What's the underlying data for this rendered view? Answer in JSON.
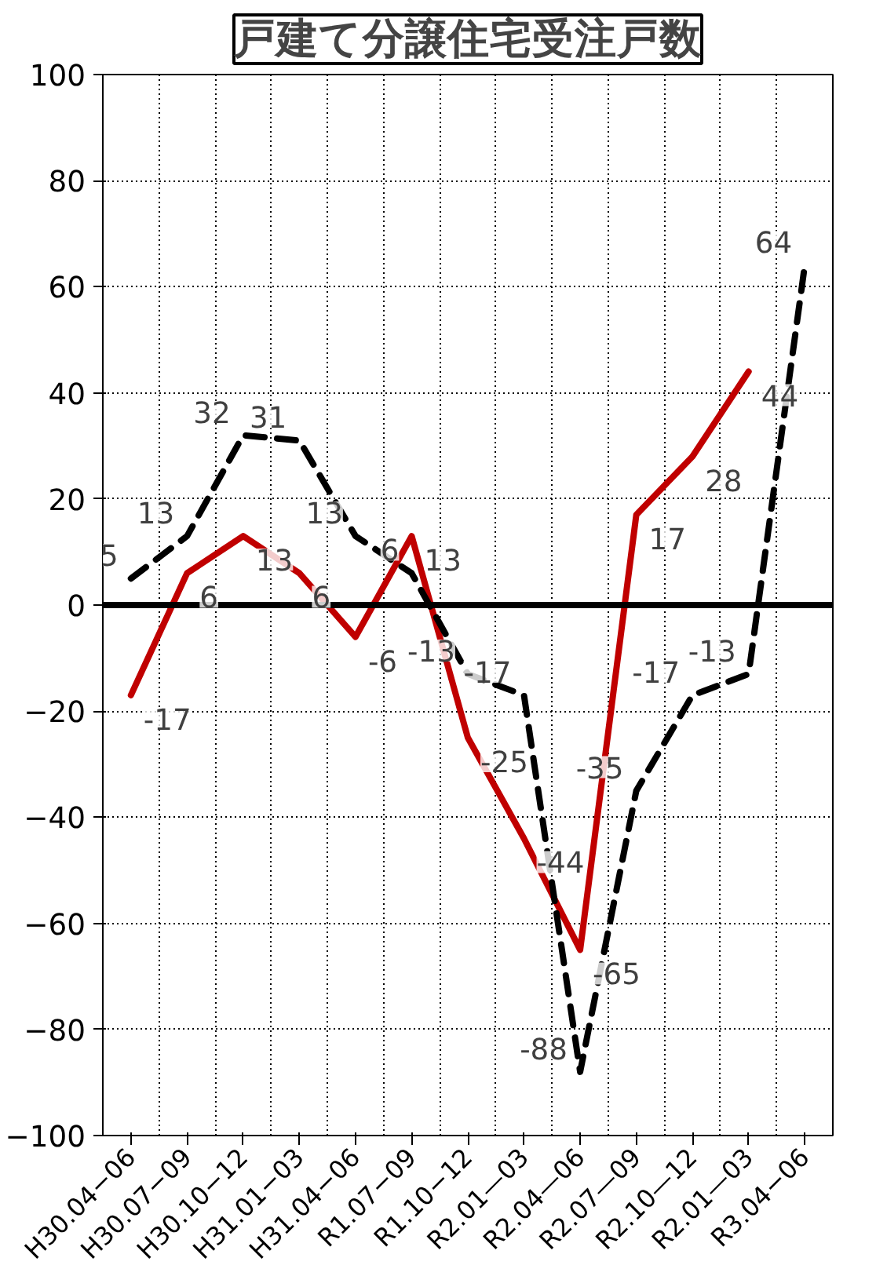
{
  "chart_data": {
    "type": "line",
    "title": "戸建て分譲住宅受注戸数",
    "categories": [
      "H30.04−06",
      "H30.07−09",
      "H30.10−12",
      "H31.01−03",
      "H31.04−06",
      "R1.07−09",
      "R1.10−12",
      "R2.01—03",
      "R2.04—06",
      "R2.07—09",
      "R2.10—12",
      "R2.01—03",
      "R3.04−06"
    ],
    "series": [
      {
        "color": "#c00000",
        "line_style": "solid",
        "values": [
          -17,
          6,
          13,
          6,
          -6,
          13,
          -25,
          -44,
          -65,
          17,
          28,
          44,
          null
        ]
      },
      {
        "color": "#000000",
        "line_style": "dashed",
        "values": [
          5,
          13,
          32,
          31,
          13,
          6,
          -13,
          -17,
          -88,
          -35,
          -17,
          -13,
          64
        ]
      }
    ],
    "ylim": [
      -100,
      100
    ],
    "yticks": [
      -100,
      -80,
      -60,
      -40,
      -20,
      0,
      20,
      40,
      60,
      80,
      100
    ],
    "grid": true,
    "data_labels": true,
    "ref_lines": [
      {
        "axis": "y",
        "value": 0,
        "color": "#000000"
      }
    ]
  }
}
